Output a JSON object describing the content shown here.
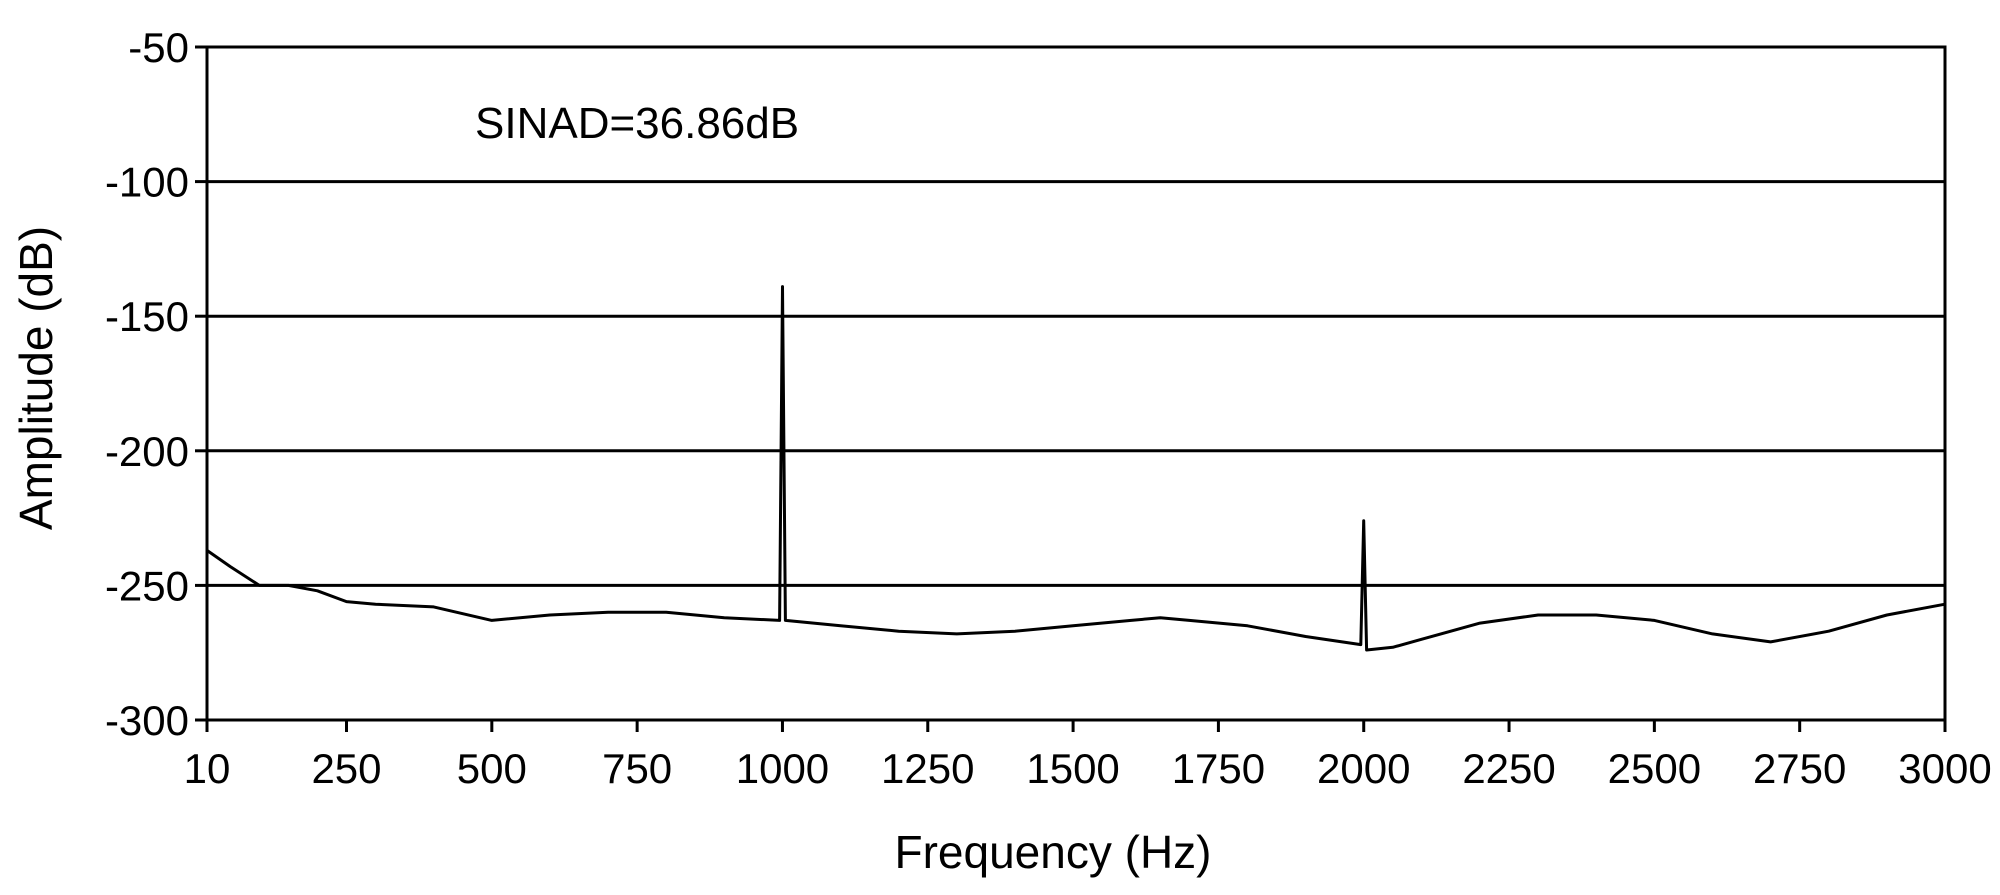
{
  "chart_data": {
    "type": "line",
    "title": "",
    "xlabel": "Frequency (Hz)",
    "ylabel": "Amplitude (dB)",
    "xlim": [
      10,
      3000
    ],
    "ylim": [
      -300,
      -50
    ],
    "x_ticks": [
      10,
      250,
      500,
      750,
      1000,
      1250,
      1500,
      1750,
      2000,
      2250,
      2500,
      2750,
      3000
    ],
    "x_tick_labels": [
      "10",
      "250",
      "500",
      "750",
      "1000",
      "1250",
      "1500",
      "1750",
      "2000",
      "2250",
      "2500",
      "2750",
      "3000"
    ],
    "y_ticks": [
      -50,
      -100,
      -150,
      -200,
      -250,
      -300
    ],
    "y_tick_labels": [
      "-50",
      "-100",
      "-150",
      "-200",
      "-250",
      "-300"
    ],
    "grid": "horizontal",
    "annotation": "SINAD=36.86dB",
    "series": [
      {
        "x": [
          10,
          50,
          100,
          150,
          200,
          250,
          300,
          400,
          500,
          600,
          700,
          800,
          900,
          995,
          1000,
          1005,
          1100,
          1200,
          1300,
          1400,
          1500,
          1600,
          1650,
          1700,
          1800,
          1900,
          1995,
          2000,
          2005,
          2050,
          2100,
          2200,
          2300,
          2400,
          2500,
          2600,
          2700,
          2800,
          2900,
          3000
        ],
        "y": [
          -237,
          -243,
          -250,
          -250,
          -252,
          -256,
          -257,
          -258,
          -263,
          -261,
          -260,
          -260,
          -262,
          -263,
          -139,
          -263,
          -265,
          -267,
          -268,
          -267,
          -265,
          -263,
          -262,
          -263,
          -265,
          -269,
          -272,
          -226,
          -274,
          -273,
          -270,
          -264,
          -261,
          -261,
          -263,
          -268,
          -271,
          -267,
          -261,
          -257
        ]
      }
    ],
    "colors": {
      "line": "#000000",
      "grid": "#000000",
      "background": "#ffffff"
    }
  }
}
